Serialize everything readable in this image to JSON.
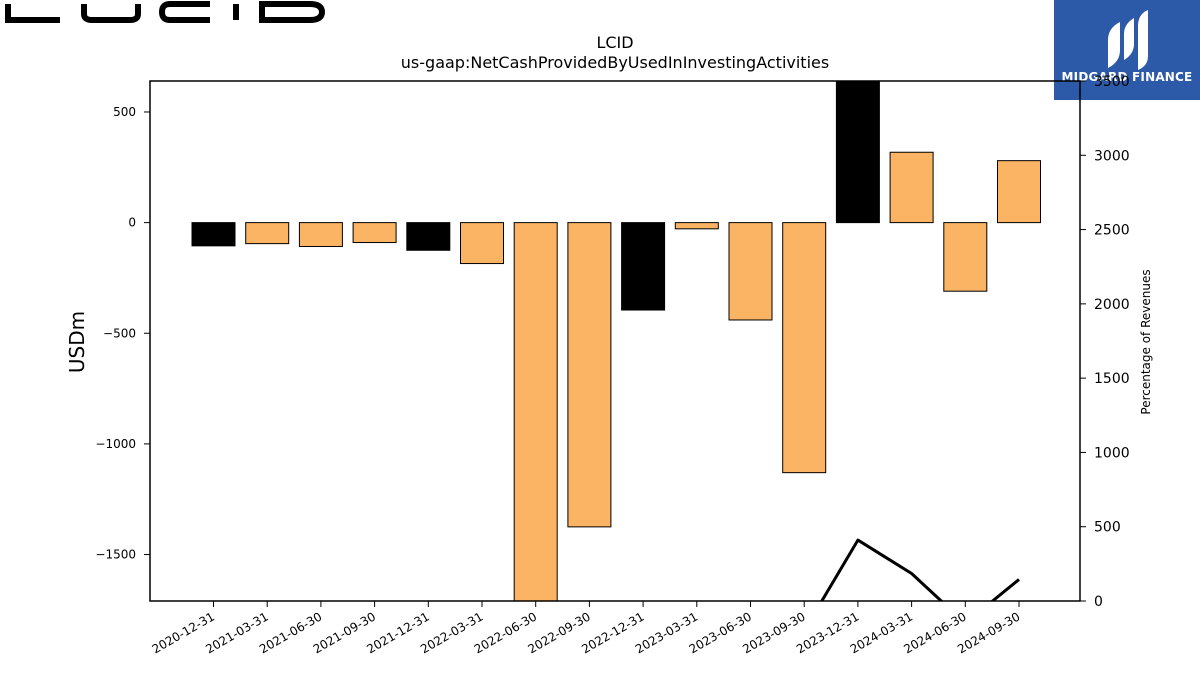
{
  "header": {
    "company_logo_icon": "lucid-wordmark",
    "brand_name": "MIDGARD FINANCE",
    "brand_icon": "midgard-logo-icon",
    "brand_color": "#2d5aa8"
  },
  "chart_data": {
    "type": "bar",
    "title": "LCID",
    "subtitle": "us-gaap:NetCashProvidedByUsedInInvestingActivities",
    "ylabel": "USDm",
    "ylabel_right": "Percentage of Revenues",
    "categories": [
      "2020-12-31",
      "2021-03-31",
      "2021-06-30",
      "2021-09-30",
      "2021-12-31",
      "2022-03-31",
      "2022-06-30",
      "2022-09-30",
      "2022-12-31",
      "2023-03-31",
      "2023-06-30",
      "2023-09-30",
      "2023-12-31",
      "2024-03-31",
      "2024-06-30",
      "2024-09-30"
    ],
    "values": [
      -105,
      -95,
      -108,
      -90,
      -125,
      -185,
      -1760,
      -1375,
      -395,
      -28,
      -440,
      -1130,
      1690,
      318,
      -310,
      280
    ],
    "bar_colors": [
      "#000000",
      "#fbb463",
      "#fbb463",
      "#fbb463",
      "#000000",
      "#fbb463",
      "#fbb463",
      "#fbb463",
      "#000000",
      "#fbb463",
      "#fbb463",
      "#fbb463",
      "#000000",
      "#fbb463",
      "#fbb463",
      "#fbb463"
    ],
    "ylim": [
      -1710,
      640
    ],
    "yticks": [
      500,
      0,
      -500,
      -1000,
      -1500
    ],
    "ytick_labels": [
      "500",
      "0",
      "−500",
      "−1000",
      "−1500"
    ],
    "secondary_series": {
      "x": [
        "2023-09-30",
        "2023-12-31",
        "2024-03-31",
        "2024-06-30",
        "2024-09-30"
      ],
      "values": [
        -200,
        410,
        185,
        -150,
        145
      ],
      "color": "#000000"
    },
    "ylim_right": [
      0,
      3500
    ],
    "yticks_right": [
      0,
      500,
      1000,
      1500,
      2000,
      2500,
      3000,
      3500
    ],
    "ytick_labels_right": [
      "0",
      "500",
      "1000",
      "1500",
      "2000",
      "2500",
      "3000",
      "3500"
    ],
    "grid": false
  }
}
